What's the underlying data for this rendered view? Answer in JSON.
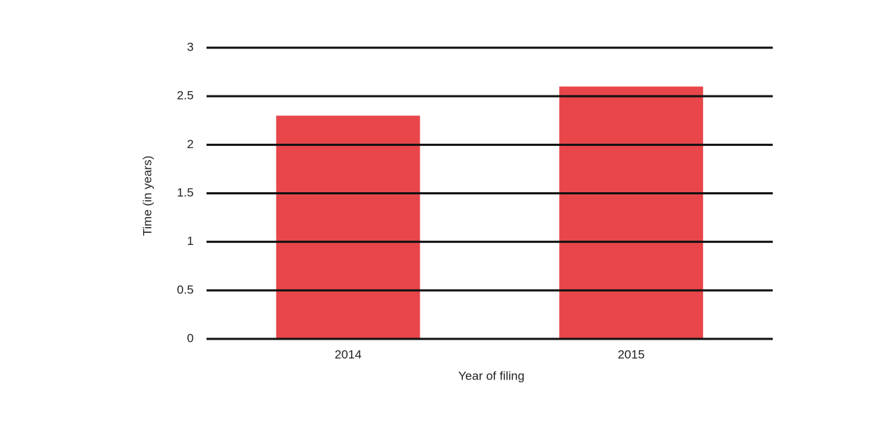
{
  "chart_data": {
    "type": "bar",
    "x_label": "Year of filing",
    "y_label": "Time (in years)",
    "categories": [
      "2014",
      "2015"
    ],
    "values": [
      2.3,
      2.6
    ],
    "color": "#e8464a",
    "ylim": [
      0,
      3
    ],
    "yticks": [
      0,
      0.5,
      1,
      1.5,
      2,
      2.5,
      3
    ],
    "grid": true
  }
}
